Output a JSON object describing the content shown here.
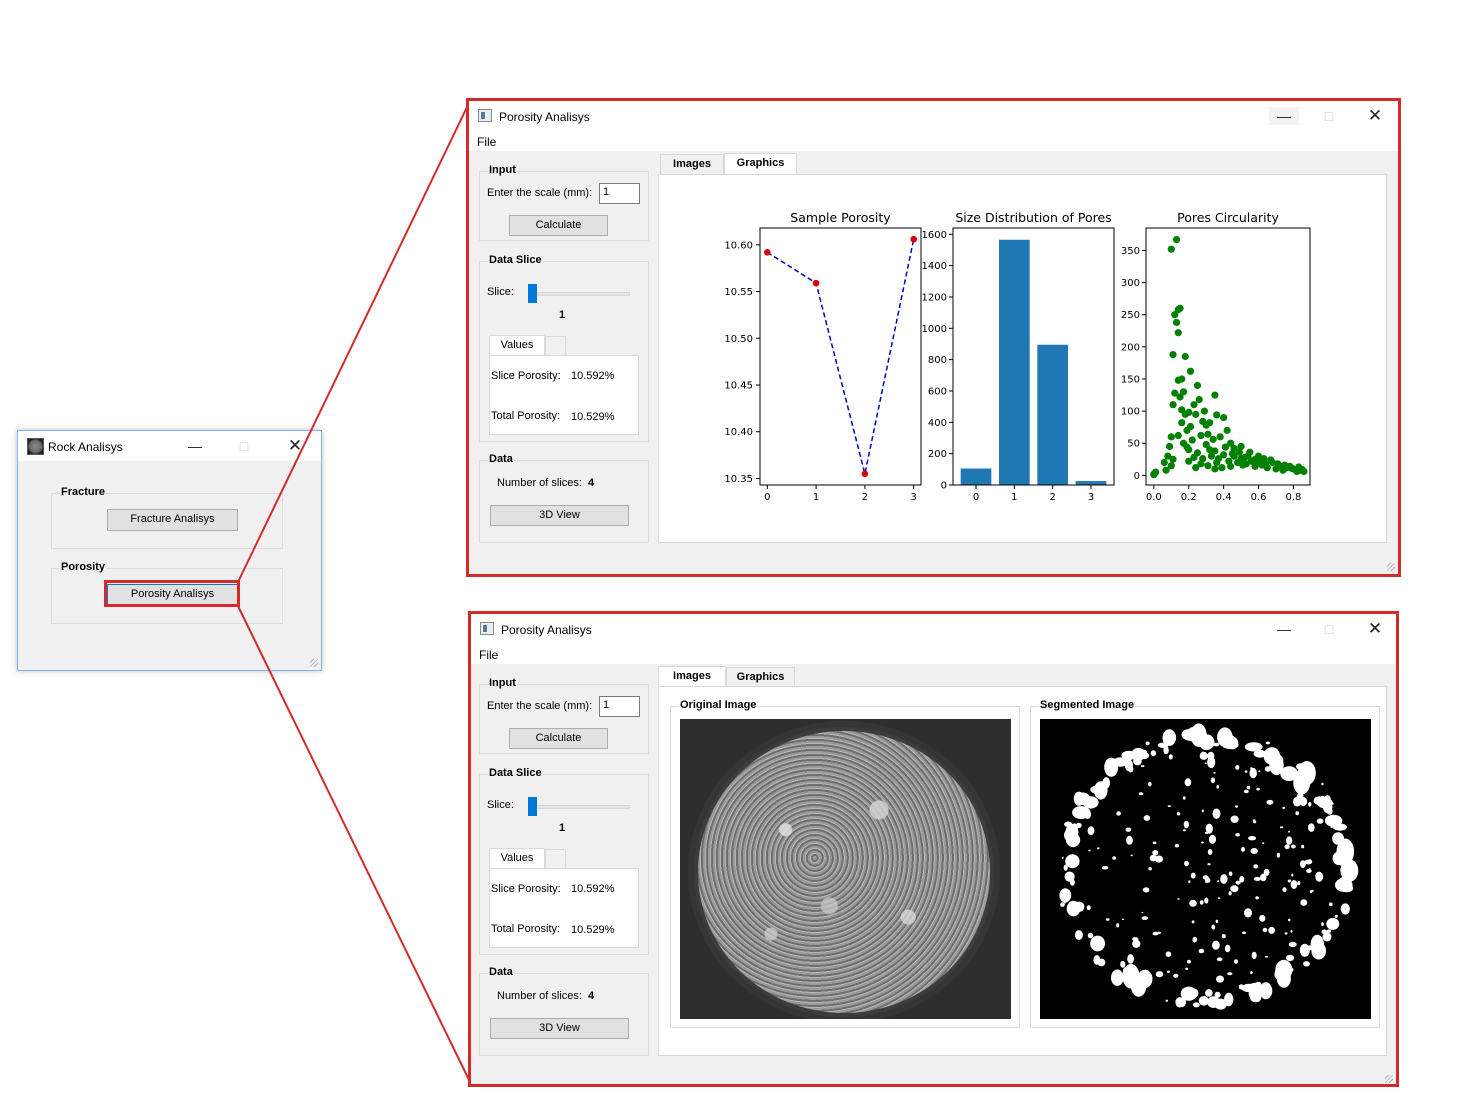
{
  "rock_window": {
    "title": "Rock Analisys",
    "fracture_group": "Fracture",
    "fracture_button": "Fracture Analisys",
    "porosity_group": "Porosity",
    "porosity_button": "Porosity Analisys"
  },
  "porosity_window": {
    "title": "Porosity Analisys",
    "menu_file": "File",
    "input_group": "Input",
    "scale_label": "Enter the scale (mm):",
    "scale_value": "1",
    "calculate_button": "Calculate",
    "data_slice_group": "Data Slice",
    "slice_label": "Slice:",
    "slice_value": "1",
    "values_tab": "Values",
    "slice_porosity_label": "Slice Porosity:",
    "slice_porosity_value": "10.592%",
    "total_porosity_label": "Total Porosity:",
    "total_porosity_value": "10.529%",
    "data_group": "Data",
    "num_slices_label": "Number of slices:",
    "num_slices_value": "4",
    "view3d_button": "3D View",
    "tab_images": "Images",
    "tab_graphics": "Graphics",
    "original_image_label": "Original Image",
    "segmented_image_label": "Segmented Image"
  },
  "colors": {
    "highlight_red": "#d42a2a",
    "line_blue": "#0000cc",
    "marker_red": "#dd0000",
    "bar_blue": "#1f77b4",
    "scatter_green": "#008000",
    "slider_blue": "#0078d7"
  },
  "icons": [
    "app-icon",
    "rock-icon",
    "minimize-icon",
    "maximize-icon",
    "close-icon",
    "resize-grip-icon"
  ],
  "chart_data": [
    {
      "type": "line",
      "title": "Sample Porosity",
      "x": [
        0,
        1,
        2,
        3
      ],
      "y": [
        10.592,
        10.559,
        10.355,
        10.606
      ],
      "xticks": [
        0,
        1,
        2,
        3
      ],
      "yticks": [
        10.35,
        10.4,
        10.45,
        10.5,
        10.55,
        10.6
      ],
      "ytick_labels": [
        "10.35",
        "10.40",
        "10.45",
        "10.50",
        "10.55",
        "10.60"
      ],
      "xlim": [
        -0.15,
        3.15
      ],
      "ylim": [
        10.343,
        10.618
      ],
      "line_style": "dashed",
      "grid": false
    },
    {
      "type": "bar",
      "title": "Size Distribution of Pores",
      "categories": [
        "0",
        "1",
        "2",
        "3"
      ],
      "values": [
        105,
        1565,
        895,
        25
      ],
      "yticks": [
        0,
        200,
        400,
        600,
        800,
        1000,
        1200,
        1400,
        1600
      ],
      "ylim": [
        0,
        1640
      ],
      "grid": false
    },
    {
      "type": "scatter",
      "title": "Pores Circularity",
      "xticks_labels": [
        "0.0",
        "0.2",
        "0.4",
        "0.6",
        "0.8"
      ],
      "xticks": [
        0.0,
        0.2,
        0.4,
        0.6,
        0.8
      ],
      "yticks": [
        0,
        50,
        100,
        150,
        200,
        250,
        300,
        350
      ],
      "xlim": [
        -0.045,
        0.895
      ],
      "ylim": [
        -15,
        385
      ],
      "points": [
        [
          0.0,
          2
        ],
        [
          0.01,
          5
        ],
        [
          0.0,
          1
        ],
        [
          0.06,
          20
        ],
        [
          0.07,
          8
        ],
        [
          0.08,
          30
        ],
        [
          0.09,
          45
        ],
        [
          0.1,
          60
        ],
        [
          0.1,
          15
        ],
        [
          0.11,
          25
        ],
        [
          0.1,
          352
        ],
        [
          0.13,
          367
        ],
        [
          0.12,
          250
        ],
        [
          0.14,
          258
        ],
        [
          0.15,
          260
        ],
        [
          0.13,
          238
        ],
        [
          0.14,
          222
        ],
        [
          0.11,
          188
        ],
        [
          0.18,
          185
        ],
        [
          0.16,
          150
        ],
        [
          0.14,
          148
        ],
        [
          0.17,
          130
        ],
        [
          0.12,
          128
        ],
        [
          0.15,
          122
        ],
        [
          0.11,
          110
        ],
        [
          0.16,
          102
        ],
        [
          0.18,
          95
        ],
        [
          0.2,
          98
        ],
        [
          0.24,
          95
        ],
        [
          0.28,
          84
        ],
        [
          0.3,
          78
        ],
        [
          0.32,
          82
        ],
        [
          0.36,
          94
        ],
        [
          0.4,
          90
        ],
        [
          0.38,
          60
        ],
        [
          0.42,
          70
        ],
        [
          0.44,
          50
        ],
        [
          0.46,
          42
        ],
        [
          0.5,
          45
        ],
        [
          0.52,
          28
        ],
        [
          0.54,
          30
        ],
        [
          0.58,
          25
        ],
        [
          0.6,
          22
        ],
        [
          0.64,
          18
        ],
        [
          0.68,
          20
        ],
        [
          0.72,
          15
        ],
        [
          0.76,
          12
        ],
        [
          0.8,
          10
        ],
        [
          0.84,
          8
        ],
        [
          0.86,
          6
        ],
        [
          0.2,
          40
        ],
        [
          0.22,
          55
        ],
        [
          0.25,
          35
        ],
        [
          0.27,
          62
        ],
        [
          0.3,
          48
        ],
        [
          0.33,
          30
        ],
        [
          0.35,
          38
        ],
        [
          0.37,
          26
        ],
        [
          0.4,
          32
        ],
        [
          0.43,
          22
        ],
        [
          0.45,
          34
        ],
        [
          0.48,
          20
        ],
        [
          0.5,
          26
        ],
        [
          0.53,
          18
        ],
        [
          0.56,
          22
        ],
        [
          0.58,
          14
        ],
        [
          0.62,
          16
        ],
        [
          0.65,
          12
        ],
        [
          0.7,
          10
        ],
        [
          0.74,
          8
        ],
        [
          0.78,
          14
        ],
        [
          0.82,
          6
        ],
        [
          0.85,
          9
        ],
        [
          0.19,
          70
        ],
        [
          0.21,
          76
        ],
        [
          0.23,
          110
        ],
        [
          0.26,
          118
        ],
        [
          0.29,
          100
        ],
        [
          0.31,
          64
        ],
        [
          0.34,
          56
        ],
        [
          0.21,
          162
        ],
        [
          0.25,
          140
        ],
        [
          0.35,
          125
        ],
        [
          0.16,
          82
        ],
        [
          0.19,
          44
        ],
        [
          0.23,
          28
        ],
        [
          0.27,
          18
        ],
        [
          0.31,
          15
        ],
        [
          0.35,
          10
        ],
        [
          0.39,
          12
        ],
        [
          0.41,
          44
        ],
        [
          0.46,
          30
        ],
        [
          0.51,
          16
        ],
        [
          0.55,
          36
        ],
        [
          0.6,
          30
        ],
        [
          0.63,
          26
        ],
        [
          0.67,
          24
        ],
        [
          0.71,
          18
        ],
        [
          0.75,
          16
        ],
        [
          0.79,
          11
        ],
        [
          0.83,
          13
        ],
        [
          0.14,
          62
        ],
        [
          0.17,
          50
        ],
        [
          0.2,
          22
        ],
        [
          0.24,
          12
        ],
        [
          0.28,
          26
        ],
        [
          0.32,
          40
        ],
        [
          0.36,
          20
        ],
        [
          0.44,
          14
        ],
        [
          0.49,
          36
        ]
      ],
      "grid": false
    }
  ]
}
